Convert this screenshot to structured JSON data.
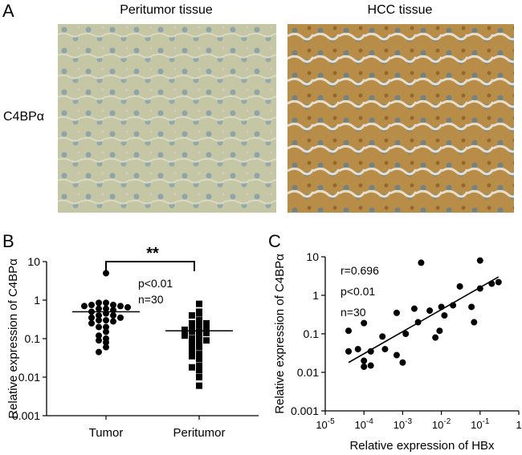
{
  "panel_a": {
    "letter": "A",
    "columns": [
      "Peritumor tissue",
      "HCC tissue"
    ],
    "row_label": "C4BPα"
  },
  "chart_data": [
    {
      "id": "B",
      "type": "scatter",
      "subtype": "dot-plot",
      "letter": "B",
      "ylabel": "Relative expression of C4BPα",
      "yscale": "log",
      "ylim": [
        0.001,
        10
      ],
      "yticks": [
        "0.001",
        "0.01",
        "0.1",
        "1",
        "10"
      ],
      "categories": [
        "Tumor",
        "Peritumor"
      ],
      "annotations": [
        "**",
        "p<0.01",
        "n=30"
      ],
      "series": [
        {
          "name": "Tumor",
          "marker": "circle",
          "mean": 0.5,
          "values": [
            5.0,
            0.85,
            0.85,
            0.75,
            0.75,
            0.7,
            0.7,
            0.65,
            0.6,
            0.6,
            0.55,
            0.5,
            0.45,
            0.4,
            0.4,
            0.35,
            0.35,
            0.3,
            0.3,
            0.28,
            0.25,
            0.2,
            0.2,
            0.15,
            0.12,
            0.1,
            0.09,
            0.08,
            0.06,
            0.045
          ]
        },
        {
          "name": "Peritumor",
          "marker": "square",
          "mean": 0.16,
          "values": [
            0.8,
            0.5,
            0.45,
            0.4,
            0.3,
            0.25,
            0.25,
            0.22,
            0.2,
            0.18,
            0.17,
            0.15,
            0.15,
            0.14,
            0.12,
            0.11,
            0.1,
            0.09,
            0.08,
            0.07,
            0.06,
            0.05,
            0.04,
            0.035,
            0.03,
            0.02,
            0.018,
            0.015,
            0.01,
            0.006
          ]
        }
      ]
    },
    {
      "id": "C",
      "type": "scatter",
      "letter": "C",
      "xlabel": "Relative expression of HBx",
      "ylabel": "Relative expression of C4BPα",
      "xscale": "log",
      "yscale": "log",
      "xlim": [
        1e-05,
        1
      ],
      "ylim": [
        0.001,
        10
      ],
      "xticks": [
        {
          "base": "10",
          "exp": "-5",
          "value": 1e-05
        },
        {
          "base": "10",
          "exp": "-4",
          "value": 0.0001
        },
        {
          "base": "10",
          "exp": "-3",
          "value": 0.001
        },
        {
          "base": "10",
          "exp": "-2",
          "value": 0.01
        },
        {
          "base": "10",
          "exp": "-1",
          "value": 0.1
        },
        {
          "base": "1",
          "exp": "",
          "value": 1
        }
      ],
      "yticks": [
        "0.001",
        "0.01",
        "0.1",
        "1",
        "10"
      ],
      "annotations": [
        "r=0.696",
        "p<0.01",
        "n=30"
      ],
      "points": [
        {
          "x": 4e-05,
          "y": 0.035
        },
        {
          "x": 4e-05,
          "y": 0.12
        },
        {
          "x": 7e-05,
          "y": 0.04
        },
        {
          "x": 0.0001,
          "y": 0.02
        },
        {
          "x": 0.0001,
          "y": 0.014
        },
        {
          "x": 0.0001,
          "y": 0.19
        },
        {
          "x": 0.00015,
          "y": 0.035
        },
        {
          "x": 0.00015,
          "y": 0.015
        },
        {
          "x": 0.0003,
          "y": 0.085
        },
        {
          "x": 0.00035,
          "y": 0.04
        },
        {
          "x": 0.0007,
          "y": 0.35
        },
        {
          "x": 0.0007,
          "y": 0.028
        },
        {
          "x": 0.001,
          "y": 0.018
        },
        {
          "x": 0.0012,
          "y": 0.1
        },
        {
          "x": 0.002,
          "y": 0.45
        },
        {
          "x": 0.0025,
          "y": 0.2
        },
        {
          "x": 0.003,
          "y": 7.0
        },
        {
          "x": 0.005,
          "y": 0.4
        },
        {
          "x": 0.007,
          "y": 0.08
        },
        {
          "x": 0.009,
          "y": 0.12
        },
        {
          "x": 0.01,
          "y": 0.5
        },
        {
          "x": 0.012,
          "y": 0.3
        },
        {
          "x": 0.02,
          "y": 0.55
        },
        {
          "x": 0.03,
          "y": 1.7
        },
        {
          "x": 0.06,
          "y": 0.5
        },
        {
          "x": 0.07,
          "y": 0.2
        },
        {
          "x": 0.1,
          "y": 8.0
        },
        {
          "x": 0.1,
          "y": 1.5
        },
        {
          "x": 0.2,
          "y": 2.0
        },
        {
          "x": 0.3,
          "y": 2.2
        }
      ],
      "fit_line": {
        "from": {
          "x": 4e-05,
          "y": 0.018
        },
        "to": {
          "x": 0.3,
          "y": 3.0
        }
      }
    }
  ]
}
